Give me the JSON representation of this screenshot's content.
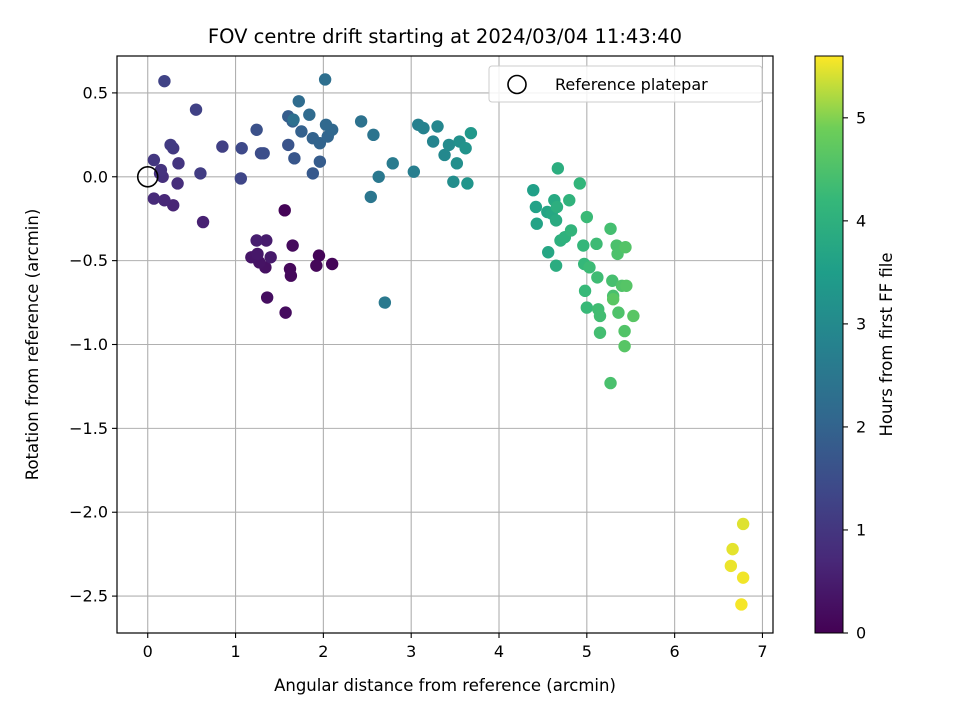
{
  "chart_data": {
    "type": "scatter",
    "title": "FOV centre drift starting at 2024/03/04 11:43:40",
    "xlabel": "Angular distance from reference (arcmin)",
    "ylabel": "Rotation from reference (arcmin)",
    "xlim": [
      -0.35,
      7.12
    ],
    "ylim": [
      -2.72,
      0.72
    ],
    "xticks": [
      0,
      1,
      2,
      3,
      4,
      5,
      6,
      7
    ],
    "xtick_labels": [
      "0",
      "1",
      "2",
      "3",
      "4",
      "5",
      "6",
      "7"
    ],
    "yticks": [
      0.5,
      0.0,
      -0.5,
      -1.0,
      -1.5,
      -2.0,
      -2.5
    ],
    "ytick_labels": [
      "0.5",
      "0.0",
      "−0.5",
      "−1.0",
      "−1.5",
      "−2.0",
      "−2.5"
    ],
    "grid": true,
    "legend": {
      "label": "Reference platepar",
      "position": "upper right",
      "marker": "open-circle"
    },
    "reference_point": {
      "x": 0.0,
      "y": 0.0
    },
    "colorbar": {
      "label": "Hours from first FF file",
      "colormap": "viridis",
      "range": [
        0,
        5.6
      ],
      "ticks": [
        0,
        1,
        2,
        3,
        4,
        5
      ],
      "tick_labels": [
        "0",
        "1",
        "2",
        "3",
        "4",
        "5"
      ]
    },
    "points": [
      {
        "x": 1.56,
        "y": -0.2,
        "c": 0.05
      },
      {
        "x": 1.95,
        "y": -0.47,
        "c": 0.07
      },
      {
        "x": 2.1,
        "y": -0.52,
        "c": 0.08
      },
      {
        "x": 1.92,
        "y": -0.53,
        "c": 0.1
      },
      {
        "x": 1.62,
        "y": -0.55,
        "c": 0.12
      },
      {
        "x": 1.63,
        "y": -0.59,
        "c": 0.14
      },
      {
        "x": 1.65,
        "y": -0.41,
        "c": 0.16
      },
      {
        "x": 1.57,
        "y": -0.81,
        "c": 0.2
      },
      {
        "x": 1.36,
        "y": -0.72,
        "c": 0.24
      },
      {
        "x": 1.34,
        "y": -0.54,
        "c": 0.28
      },
      {
        "x": 1.27,
        "y": -0.51,
        "c": 0.32
      },
      {
        "x": 1.18,
        "y": -0.48,
        "c": 0.36
      },
      {
        "x": 1.25,
        "y": -0.46,
        "c": 0.4
      },
      {
        "x": 1.4,
        "y": -0.48,
        "c": 0.44
      },
      {
        "x": 1.35,
        "y": -0.38,
        "c": 0.48
      },
      {
        "x": 1.24,
        "y": -0.38,
        "c": 0.52
      },
      {
        "x": 0.63,
        "y": -0.27,
        "c": 0.58
      },
      {
        "x": 0.29,
        "y": -0.17,
        "c": 0.64
      },
      {
        "x": 0.19,
        "y": -0.14,
        "c": 0.7
      },
      {
        "x": 0.07,
        "y": -0.13,
        "c": 0.76
      },
      {
        "x": 0.34,
        "y": -0.04,
        "c": 0.82
      },
      {
        "x": 0.17,
        "y": 0.0,
        "c": 0.86
      },
      {
        "x": 0.14,
        "y": 0.02,
        "c": 0.9
      },
      {
        "x": 0.15,
        "y": 0.04,
        "c": 0.94
      },
      {
        "x": 0.35,
        "y": 0.08,
        "c": 0.98
      },
      {
        "x": 0.07,
        "y": 0.1,
        "c": 1.02
      },
      {
        "x": 0.29,
        "y": 0.17,
        "c": 1.06
      },
      {
        "x": 0.26,
        "y": 0.19,
        "c": 1.1
      },
      {
        "x": 0.6,
        "y": 0.02,
        "c": 1.14
      },
      {
        "x": 0.85,
        "y": 0.18,
        "c": 1.2
      },
      {
        "x": 0.55,
        "y": 0.4,
        "c": 1.24
      },
      {
        "x": 0.19,
        "y": 0.57,
        "c": 1.28
      },
      {
        "x": 1.06,
        "y": -0.01,
        "c": 1.34
      },
      {
        "x": 1.07,
        "y": 0.17,
        "c": 1.4
      },
      {
        "x": 1.29,
        "y": 0.14,
        "c": 1.46
      },
      {
        "x": 1.32,
        "y": 0.14,
        "c": 1.52
      },
      {
        "x": 1.24,
        "y": 0.28,
        "c": 1.58
      },
      {
        "x": 1.6,
        "y": 0.19,
        "c": 1.64
      },
      {
        "x": 1.67,
        "y": 0.11,
        "c": 1.7
      },
      {
        "x": 1.88,
        "y": 0.02,
        "c": 1.76
      },
      {
        "x": 1.96,
        "y": 0.09,
        "c": 1.82
      },
      {
        "x": 1.6,
        "y": 0.36,
        "c": 1.86
      },
      {
        "x": 1.65,
        "y": 0.33,
        "c": 1.9
      },
      {
        "x": 1.75,
        "y": 0.27,
        "c": 1.94
      },
      {
        "x": 1.88,
        "y": 0.23,
        "c": 1.98
      },
      {
        "x": 1.96,
        "y": 0.2,
        "c": 2.02
      },
      {
        "x": 2.05,
        "y": 0.24,
        "c": 2.06
      },
      {
        "x": 2.1,
        "y": 0.28,
        "c": 2.1
      },
      {
        "x": 2.03,
        "y": 0.31,
        "c": 2.14
      },
      {
        "x": 1.84,
        "y": 0.37,
        "c": 2.18
      },
      {
        "x": 1.72,
        "y": 0.45,
        "c": 2.22
      },
      {
        "x": 2.02,
        "y": 0.58,
        "c": 2.28
      },
      {
        "x": 1.66,
        "y": 0.34,
        "c": 2.32
      },
      {
        "x": 2.43,
        "y": 0.33,
        "c": 2.38
      },
      {
        "x": 2.57,
        "y": 0.25,
        "c": 2.42
      },
      {
        "x": 2.54,
        "y": -0.12,
        "c": 2.48
      },
      {
        "x": 2.63,
        "y": 0.0,
        "c": 2.52
      },
      {
        "x": 2.7,
        "y": -0.75,
        "c": 2.56
      },
      {
        "x": 2.79,
        "y": 0.08,
        "c": 2.62
      },
      {
        "x": 3.03,
        "y": 0.03,
        "c": 2.68
      },
      {
        "x": 3.08,
        "y": 0.31,
        "c": 2.74
      },
      {
        "x": 3.14,
        "y": 0.29,
        "c": 2.8
      },
      {
        "x": 3.25,
        "y": 0.21,
        "c": 2.86
      },
      {
        "x": 3.3,
        "y": 0.3,
        "c": 2.9
      },
      {
        "x": 3.38,
        "y": 0.13,
        "c": 2.96
      },
      {
        "x": 3.43,
        "y": 0.19,
        "c": 3.02
      },
      {
        "x": 3.48,
        "y": -0.03,
        "c": 3.08
      },
      {
        "x": 3.52,
        "y": 0.08,
        "c": 3.12
      },
      {
        "x": 3.55,
        "y": 0.21,
        "c": 3.16
      },
      {
        "x": 3.62,
        "y": 0.17,
        "c": 3.22
      },
      {
        "x": 3.64,
        "y": -0.04,
        "c": 3.28
      },
      {
        "x": 3.68,
        "y": 0.26,
        "c": 3.34
      },
      {
        "x": 4.39,
        "y": -0.08,
        "c": 3.56
      },
      {
        "x": 4.42,
        "y": -0.18,
        "c": 3.6
      },
      {
        "x": 4.43,
        "y": -0.28,
        "c": 3.64
      },
      {
        "x": 4.55,
        "y": -0.21,
        "c": 3.68
      },
      {
        "x": 4.56,
        "y": -0.45,
        "c": 3.72
      },
      {
        "x": 4.6,
        "y": -0.22,
        "c": 3.76
      },
      {
        "x": 4.63,
        "y": -0.14,
        "c": 3.8
      },
      {
        "x": 4.65,
        "y": -0.26,
        "c": 3.84
      },
      {
        "x": 4.65,
        "y": -0.53,
        "c": 3.88
      },
      {
        "x": 4.67,
        "y": 0.05,
        "c": 3.92
      },
      {
        "x": 4.66,
        "y": -0.18,
        "c": 3.94
      },
      {
        "x": 4.7,
        "y": -0.38,
        "c": 3.98
      },
      {
        "x": 4.75,
        "y": -0.36,
        "c": 4.02
      },
      {
        "x": 4.8,
        "y": -0.14,
        "c": 4.06
      },
      {
        "x": 4.82,
        "y": -0.32,
        "c": 4.1
      },
      {
        "x": 4.92,
        "y": -0.04,
        "c": 4.14
      },
      {
        "x": 4.96,
        "y": -0.41,
        "c": 4.16
      },
      {
        "x": 4.97,
        "y": -0.52,
        "c": 4.2
      },
      {
        "x": 4.98,
        "y": -0.68,
        "c": 4.22
      },
      {
        "x": 5.0,
        "y": -0.78,
        "c": 4.24
      },
      {
        "x": 5.0,
        "y": -0.24,
        "c": 4.26
      },
      {
        "x": 5.03,
        "y": -0.54,
        "c": 4.28
      },
      {
        "x": 5.11,
        "y": -0.4,
        "c": 4.3
      },
      {
        "x": 5.12,
        "y": -0.6,
        "c": 4.32
      },
      {
        "x": 5.13,
        "y": -0.79,
        "c": 4.34
      },
      {
        "x": 5.15,
        "y": -0.83,
        "c": 4.36
      },
      {
        "x": 5.15,
        "y": -0.93,
        "c": 4.38
      },
      {
        "x": 5.27,
        "y": -0.31,
        "c": 4.4
      },
      {
        "x": 5.29,
        "y": -0.62,
        "c": 4.42
      },
      {
        "x": 5.3,
        "y": -0.71,
        "c": 4.44
      },
      {
        "x": 5.27,
        "y": -1.23,
        "c": 4.46
      },
      {
        "x": 5.34,
        "y": -0.41,
        "c": 4.48
      },
      {
        "x": 5.35,
        "y": -0.46,
        "c": 4.5
      },
      {
        "x": 5.36,
        "y": -0.81,
        "c": 4.52
      },
      {
        "x": 5.4,
        "y": -0.65,
        "c": 4.54
      },
      {
        "x": 5.43,
        "y": -0.92,
        "c": 4.56
      },
      {
        "x": 5.44,
        "y": -0.42,
        "c": 4.58
      },
      {
        "x": 5.45,
        "y": -0.65,
        "c": 4.6
      },
      {
        "x": 5.43,
        "y": -1.01,
        "c": 4.62
      },
      {
        "x": 5.53,
        "y": -0.83,
        "c": 4.64
      },
      {
        "x": 5.3,
        "y": -0.73,
        "c": 4.66
      },
      {
        "x": 6.78,
        "y": -2.07,
        "c": 5.45
      },
      {
        "x": 6.66,
        "y": -2.22,
        "c": 5.48
      },
      {
        "x": 6.64,
        "y": -2.32,
        "c": 5.51
      },
      {
        "x": 6.78,
        "y": -2.39,
        "c": 5.54
      },
      {
        "x": 6.76,
        "y": -2.55,
        "c": 5.56
      }
    ]
  }
}
